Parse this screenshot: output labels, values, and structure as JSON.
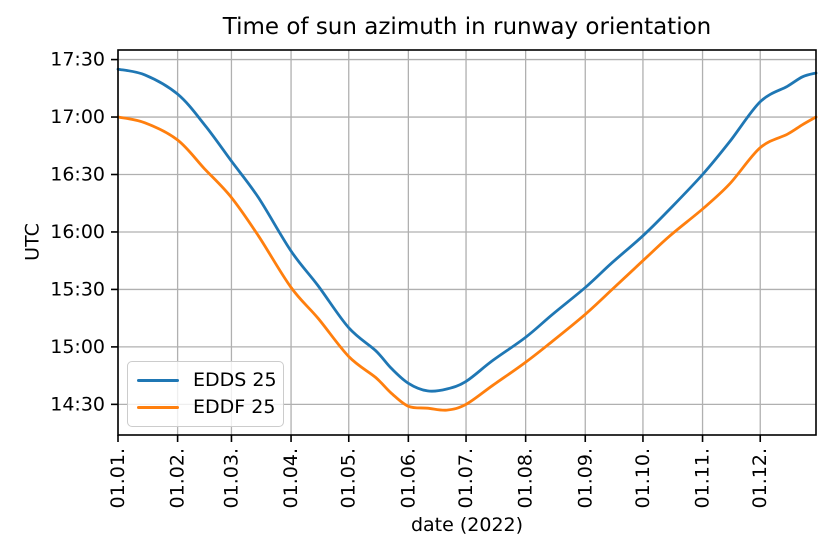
{
  "figure": {
    "title": "Time of sun azimuth in runway orientation",
    "xlabel": "date (2022)",
    "ylabel": "UTC",
    "background_color": "#ffffff",
    "grid_color": "#b0b0b0",
    "spine_color": "#000000",
    "text_color": "#000000",
    "legend_border_color": "#cccccc"
  },
  "chart_data": {
    "type": "line",
    "title": "Time of sun azimuth in runway orientation",
    "xlabel": "date (2022)",
    "ylabel": "UTC",
    "grid": true,
    "legend_position": "lower left",
    "x_unit": "day_of_year_2022",
    "xlim_days": [
      0,
      363
    ],
    "ylim_utc": [
      "14:14",
      "17:35"
    ],
    "x_tick_labels": [
      "01.01.",
      "01.02.",
      "01.03.",
      "01.04.",
      "01.05.",
      "01.06.",
      "01.07.",
      "01.08.",
      "01.09.",
      "01.10.",
      "01.11.",
      "01.12."
    ],
    "x_tick_days": [
      0,
      31,
      59,
      90,
      120,
      151,
      181,
      212,
      243,
      273,
      304,
      334
    ],
    "y_tick_labels": [
      "14:30",
      "15:00",
      "15:30",
      "16:00",
      "16:30",
      "17:00",
      "17:30"
    ],
    "series": [
      {
        "name": "EDDS 25",
        "color": "#1f77b4",
        "points": [
          {
            "day": 0,
            "utc": "17:25"
          },
          {
            "day": 14,
            "utc": "17:22"
          },
          {
            "day": 31,
            "utc": "17:12"
          },
          {
            "day": 45,
            "utc": "16:56"
          },
          {
            "day": 59,
            "utc": "16:37"
          },
          {
            "day": 73,
            "utc": "16:18"
          },
          {
            "day": 90,
            "utc": "15:50"
          },
          {
            "day": 104,
            "utc": "15:32"
          },
          {
            "day": 120,
            "utc": "15:10"
          },
          {
            "day": 134,
            "utc": "14:58"
          },
          {
            "day": 142,
            "utc": "14:49"
          },
          {
            "day": 151,
            "utc": "14:41"
          },
          {
            "day": 161,
            "utc": "14:37"
          },
          {
            "day": 171,
            "utc": "14:38"
          },
          {
            "day": 181,
            "utc": "14:42"
          },
          {
            "day": 195,
            "utc": "14:53"
          },
          {
            "day": 212,
            "utc": "15:05"
          },
          {
            "day": 226,
            "utc": "15:17"
          },
          {
            "day": 243,
            "utc": "15:31"
          },
          {
            "day": 257,
            "utc": "15:44"
          },
          {
            "day": 273,
            "utc": "15:58"
          },
          {
            "day": 287,
            "utc": "16:12"
          },
          {
            "day": 304,
            "utc": "16:30"
          },
          {
            "day": 318,
            "utc": "16:47"
          },
          {
            "day": 334,
            "utc": "17:08"
          },
          {
            "day": 348,
            "utc": "17:16"
          },
          {
            "day": 356,
            "utc": "17:21"
          },
          {
            "day": 363,
            "utc": "17:23"
          }
        ]
      },
      {
        "name": "EDDF 25",
        "color": "#ff7f0e",
        "points": [
          {
            "day": 0,
            "utc": "17:00"
          },
          {
            "day": 14,
            "utc": "16:57"
          },
          {
            "day": 31,
            "utc": "16:48"
          },
          {
            "day": 45,
            "utc": "16:33"
          },
          {
            "day": 59,
            "utc": "16:18"
          },
          {
            "day": 73,
            "utc": "15:58"
          },
          {
            "day": 90,
            "utc": "15:31"
          },
          {
            "day": 104,
            "utc": "15:15"
          },
          {
            "day": 120,
            "utc": "14:55"
          },
          {
            "day": 134,
            "utc": "14:44"
          },
          {
            "day": 142,
            "utc": "14:36"
          },
          {
            "day": 151,
            "utc": "14:29"
          },
          {
            "day": 161,
            "utc": "14:28"
          },
          {
            "day": 171,
            "utc": "14:27"
          },
          {
            "day": 181,
            "utc": "14:30"
          },
          {
            "day": 195,
            "utc": "14:40"
          },
          {
            "day": 212,
            "utc": "14:52"
          },
          {
            "day": 226,
            "utc": "15:03"
          },
          {
            "day": 243,
            "utc": "15:17"
          },
          {
            "day": 257,
            "utc": "15:30"
          },
          {
            "day": 273,
            "utc": "15:45"
          },
          {
            "day": 287,
            "utc": "15:58"
          },
          {
            "day": 304,
            "utc": "16:12"
          },
          {
            "day": 318,
            "utc": "16:25"
          },
          {
            "day": 334,
            "utc": "16:44"
          },
          {
            "day": 348,
            "utc": "16:51"
          },
          {
            "day": 356,
            "utc": "16:56"
          },
          {
            "day": 363,
            "utc": "17:00"
          }
        ]
      }
    ]
  }
}
